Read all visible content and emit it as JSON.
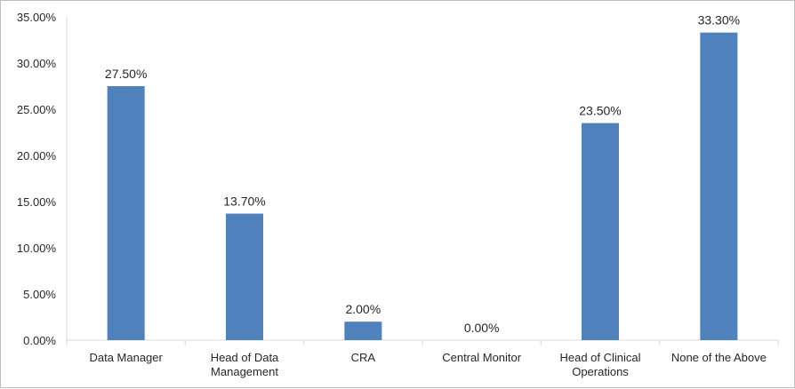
{
  "chart_data": {
    "type": "bar",
    "categories": [
      [
        "Data Manager"
      ],
      [
        "Head of Data",
        "Management"
      ],
      [
        "CRA"
      ],
      [
        "Central Monitor"
      ],
      [
        "Head of Clinical",
        "Operations"
      ],
      [
        "None of the Above"
      ]
    ],
    "values": [
      27.5,
      13.7,
      2.0,
      0.0,
      23.5,
      33.3
    ],
    "data_labels": [
      "27.50%",
      "13.70%",
      "2.00%",
      "0.00%",
      "23.50%",
      "33.30%"
    ],
    "title": "",
    "xlabel": "",
    "ylabel": "",
    "ylim": [
      0,
      35
    ],
    "yticks": [
      0,
      5,
      10,
      15,
      20,
      25,
      30,
      35
    ],
    "ytick_labels": [
      "0.00%",
      "5.00%",
      "10.00%",
      "15.00%",
      "20.00%",
      "25.00%",
      "30.00%",
      "35.00%"
    ],
    "grid": false,
    "legend": "none",
    "bar_color": "#4f81bd",
    "axis_color": "#d9d9d9"
  }
}
